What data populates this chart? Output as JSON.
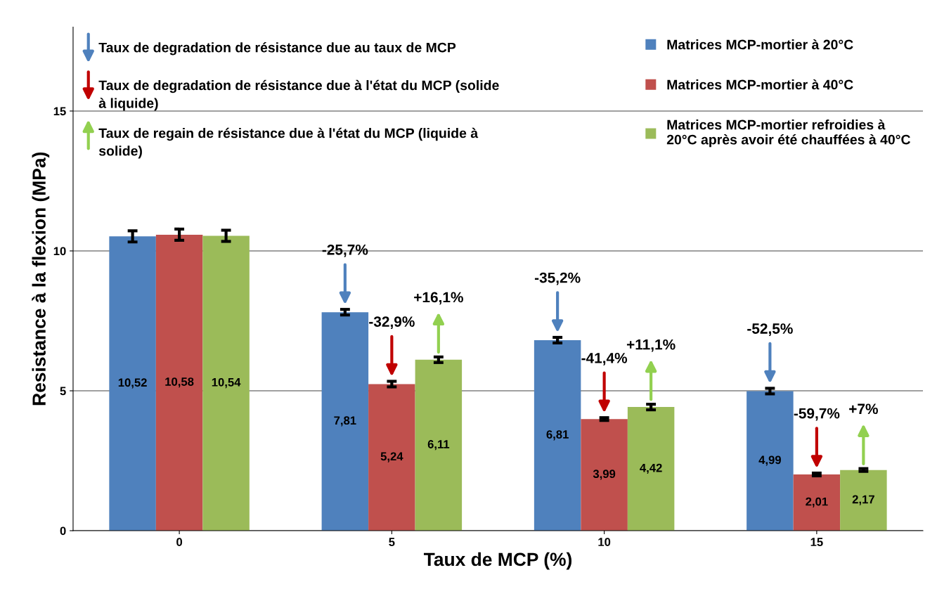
{
  "chart_data": {
    "type": "bar",
    "xlabel": "Taux de MCP (%)",
    "ylabel": "Resistance à la flexion (MPa)",
    "categories": [
      "0",
      "5",
      "10",
      "15"
    ],
    "series": [
      {
        "name": "Matrices MCP-mortier à 20°C",
        "color": "#4f81bd",
        "values": [
          10.52,
          7.81,
          6.81,
          4.99
        ],
        "value_labels": [
          "10,52",
          "7,81",
          "6,81",
          "4,99"
        ],
        "errors": [
          0.2,
          0.1,
          0.1,
          0.1
        ]
      },
      {
        "name": "Matrices MCP-mortier à 40°C",
        "color": "#c0504d",
        "values": [
          10.58,
          5.24,
          3.99,
          2.01
        ],
        "value_labels": [
          "10,58",
          "5,24",
          "3,99",
          "2,01"
        ],
        "errors": [
          0.2,
          0.1,
          0.05,
          0.05
        ]
      },
      {
        "name": "Matrices MCP-mortier refroidies à\n20°C après avoir été chauffées à 40°C",
        "color": "#9bbb59",
        "values": [
          10.54,
          6.11,
          4.42,
          2.17
        ],
        "value_labels": [
          "10,54",
          "6,11",
          "4,42",
          "2,17"
        ],
        "errors": [
          0.2,
          0.1,
          0.1,
          0.05
        ]
      }
    ],
    "ylim": [
      0,
      18
    ],
    "yticks": [
      0,
      5,
      10,
      15
    ],
    "grid": "y",
    "legend": "top right",
    "annotations": [
      "Taux de degradation de résistance due au taux de MCP",
      "Taux de degradation de résistance due à l'état du MCP (solide\nà liquide)",
      "Taux de regain de résistance due à l'état du MCP (liquide à\nsolide)",
      "-25,7%",
      "-32,9%",
      "+16,1%",
      "-35,2%",
      "-41,4%",
      "+11,1%",
      "-52,5%",
      "-59,7%",
      "+7%"
    ]
  }
}
